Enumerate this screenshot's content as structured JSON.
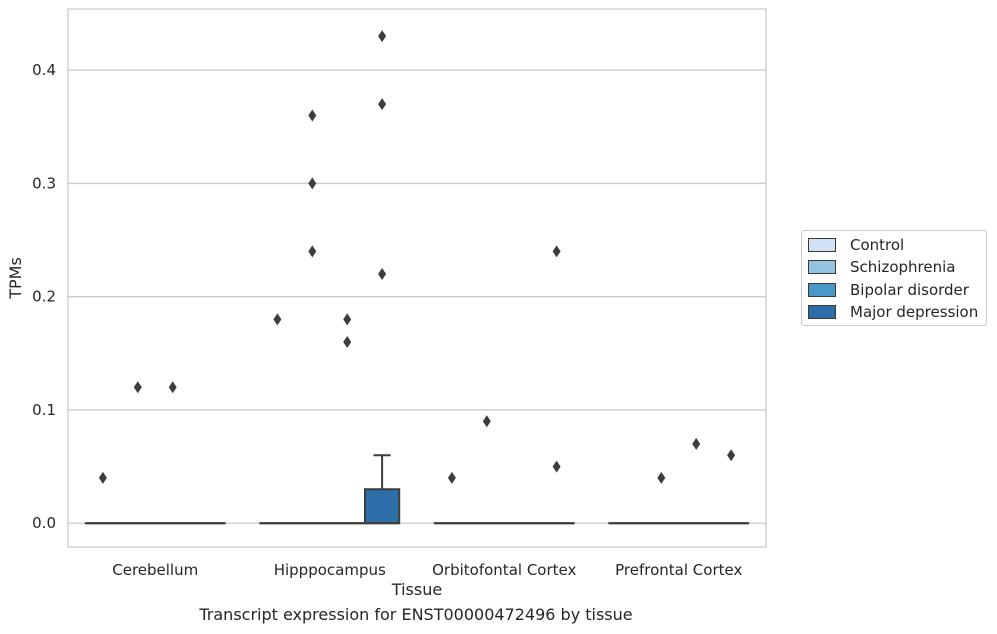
{
  "chart_data": {
    "type": "box",
    "xlabel": "Tissue",
    "ylabel": "TPMs",
    "caption": "Transcript expression for ENST00000472496 by tissue",
    "categories": [
      "Cerebellum",
      "Hipppocampus",
      "Orbitofontal Cortex",
      "Prefrontal Cortex"
    ],
    "yticks": [
      "0.0",
      "0.1",
      "0.2",
      "0.3",
      "0.4"
    ],
    "ylim": [
      -0.021,
      0.454
    ],
    "grid": true,
    "legend_position": "right",
    "series": [
      {
        "name": "Control",
        "color": "#d0e1f2",
        "boxes": [
          {
            "q1": 0,
            "median": 0,
            "q3": 0,
            "whisker_low": 0,
            "whisker_high": 0,
            "outliers": [
              0.04
            ]
          },
          {
            "q1": 0,
            "median": 0,
            "q3": 0,
            "whisker_low": 0,
            "whisker_high": 0,
            "outliers": [
              0.18
            ]
          },
          {
            "q1": 0,
            "median": 0,
            "q3": 0,
            "whisker_low": 0,
            "whisker_high": 0,
            "outliers": [
              0.04
            ]
          },
          {
            "q1": 0,
            "median": 0,
            "q3": 0,
            "whisker_low": 0,
            "whisker_high": 0,
            "outliers": []
          }
        ]
      },
      {
        "name": "Schizophrenia",
        "color": "#94c4df",
        "boxes": [
          {
            "q1": 0,
            "median": 0,
            "q3": 0,
            "whisker_low": 0,
            "whisker_high": 0,
            "outliers": [
              0.12
            ]
          },
          {
            "q1": 0,
            "median": 0,
            "q3": 0,
            "whisker_low": 0,
            "whisker_high": 0,
            "outliers": [
              0.24,
              0.3,
              0.36
            ]
          },
          {
            "q1": 0,
            "median": 0,
            "q3": 0,
            "whisker_low": 0,
            "whisker_high": 0,
            "outliers": [
              0.09
            ]
          },
          {
            "q1": 0,
            "median": 0,
            "q3": 0,
            "whisker_low": 0,
            "whisker_high": 0,
            "outliers": [
              0.04
            ]
          }
        ]
      },
      {
        "name": "Bipolar disorder",
        "color": "#4a98c9",
        "boxes": [
          {
            "q1": 0,
            "median": 0,
            "q3": 0,
            "whisker_low": 0,
            "whisker_high": 0,
            "outliers": [
              0.12
            ]
          },
          {
            "q1": 0,
            "median": 0,
            "q3": 0,
            "whisker_low": 0,
            "whisker_high": 0,
            "outliers": [
              0.16,
              0.18
            ]
          },
          {
            "q1": 0,
            "median": 0,
            "q3": 0,
            "whisker_low": 0,
            "whisker_high": 0,
            "outliers": []
          },
          {
            "q1": 0,
            "median": 0,
            "q3": 0,
            "whisker_low": 0,
            "whisker_high": 0,
            "outliers": [
              0.07
            ]
          }
        ]
      },
      {
        "name": "Major depression",
        "color": "#2e6ea8",
        "boxes": [
          {
            "q1": 0,
            "median": 0,
            "q3": 0,
            "whisker_low": 0,
            "whisker_high": 0,
            "outliers": []
          },
          {
            "q1": 0,
            "median": 0,
            "q3": 0.03,
            "whisker_low": 0,
            "whisker_high": 0.06,
            "outliers": [
              0.22,
              0.37,
              0.43
            ]
          },
          {
            "q1": 0,
            "median": 0,
            "q3": 0,
            "whisker_low": 0,
            "whisker_high": 0,
            "outliers": [
              0.05,
              0.24
            ]
          },
          {
            "q1": 0,
            "median": 0,
            "q3": 0,
            "whisker_low": 0,
            "whisker_high": 0,
            "outliers": [
              0.06
            ]
          }
        ]
      }
    ]
  },
  "legend": {
    "items": [
      {
        "label": "Control",
        "color": "#d0e1f2"
      },
      {
        "label": "Schizophrenia",
        "color": "#94c4df"
      },
      {
        "label": "Bipolar disorder",
        "color": "#4a98c9"
      },
      {
        "label": "Major depression",
        "color": "#2e6ea8"
      }
    ]
  }
}
